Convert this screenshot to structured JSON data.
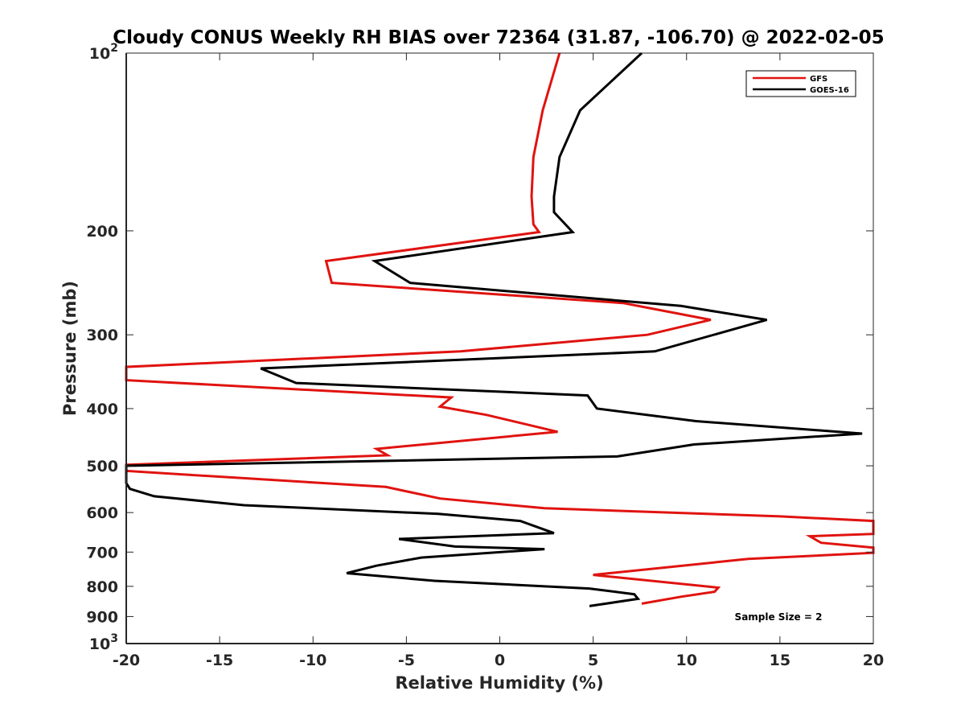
{
  "chart_data": {
    "type": "line",
    "title": "Cloudy CONUS Weekly RH BIAS over 72364 (31.87, -106.70) @ 2022-02-05",
    "xlabel": "Relative Humidity (%)",
    "ylabel": "Pressure (mb)",
    "xlim": [
      -20,
      20
    ],
    "ylim": [
      100,
      1000
    ],
    "y_scale": "log",
    "y_reversed": true,
    "grid": false,
    "legend_position": "top-right",
    "x_ticks": [
      "-20",
      "-15",
      "-10",
      "-5",
      "0",
      "5",
      "10",
      "15",
      "20"
    ],
    "y_ticks": [
      {
        "value": 100,
        "base": "10",
        "exp": "2"
      },
      {
        "value": 200,
        "label": "200"
      },
      {
        "value": 300,
        "label": "300"
      },
      {
        "value": 400,
        "label": "400"
      },
      {
        "value": 500,
        "label": "500"
      },
      {
        "value": 600,
        "label": "600"
      },
      {
        "value": 700,
        "label": "700"
      },
      {
        "value": 800,
        "label": "800"
      },
      {
        "value": 900,
        "label": "900"
      },
      {
        "value": 1000,
        "base": "10",
        "exp": "3"
      }
    ],
    "series": [
      {
        "name": "GFS",
        "color": "#e0130f",
        "points": [
          [
            3.2,
            100
          ],
          [
            2.3,
            125
          ],
          [
            1.8,
            150
          ],
          [
            1.7,
            175
          ],
          [
            1.8,
            195
          ],
          [
            2.1,
            201
          ],
          [
            -9.3,
            225
          ],
          [
            -9.0,
            245
          ],
          [
            6.6,
            265
          ],
          [
            11.3,
            283
          ],
          [
            7.9,
            300
          ],
          [
            -2.1,
            320
          ],
          [
            -20.0,
            340
          ],
          [
            -20.0,
            358
          ],
          [
            -2.6,
            383
          ],
          [
            -3.2,
            397
          ],
          [
            -0.7,
            410
          ],
          [
            3.1,
            438
          ],
          [
            -6.6,
            468
          ],
          [
            -6.0,
            480
          ],
          [
            -20.0,
            498
          ],
          [
            -20.0,
            510
          ],
          [
            -6.1,
            543
          ],
          [
            -3.2,
            568
          ],
          [
            2.4,
            590
          ],
          [
            15.0,
            609
          ],
          [
            20.0,
            620
          ],
          [
            20.0,
            652
          ],
          [
            16.6,
            658
          ],
          [
            17.2,
            675
          ],
          [
            20.0,
            688
          ],
          [
            20.0,
            702
          ],
          [
            13.3,
            719
          ],
          [
            5.0,
            765
          ],
          [
            11.7,
            804
          ],
          [
            11.5,
            817
          ],
          [
            9.7,
            833
          ],
          [
            7.6,
            856
          ]
        ]
      },
      {
        "name": "GOES-16",
        "color": "#000000",
        "points": [
          [
            7.6,
            100
          ],
          [
            4.3,
            125
          ],
          [
            3.2,
            150
          ],
          [
            2.9,
            175
          ],
          [
            2.9,
            186
          ],
          [
            3.9,
            201
          ],
          [
            -6.7,
            225
          ],
          [
            -4.8,
            245
          ],
          [
            9.7,
            268
          ],
          [
            14.3,
            283
          ],
          [
            8.3,
            320
          ],
          [
            -12.8,
            342
          ],
          [
            -10.9,
            362
          ],
          [
            4.7,
            380
          ],
          [
            5.2,
            400
          ],
          [
            10.5,
            420
          ],
          [
            19.4,
            441
          ],
          [
            10.4,
            460
          ],
          [
            6.3,
            482
          ],
          [
            -20.0,
            500
          ],
          [
            -20.0,
            535
          ],
          [
            -19.8,
            547
          ],
          [
            -18.5,
            563
          ],
          [
            -13.7,
            583
          ],
          [
            -3.3,
            603
          ],
          [
            1.1,
            620
          ],
          [
            2.9,
            650
          ],
          [
            -5.4,
            665
          ],
          [
            -2.4,
            685
          ],
          [
            2.4,
            692
          ],
          [
            -4.2,
            715
          ],
          [
            -6.6,
            738
          ],
          [
            -8.2,
            760
          ],
          [
            -3.5,
            783
          ],
          [
            4.8,
            807
          ],
          [
            7.2,
            825
          ],
          [
            7.4,
            840
          ],
          [
            4.8,
            864
          ]
        ]
      }
    ],
    "annotation": "Sample Size = 2"
  }
}
